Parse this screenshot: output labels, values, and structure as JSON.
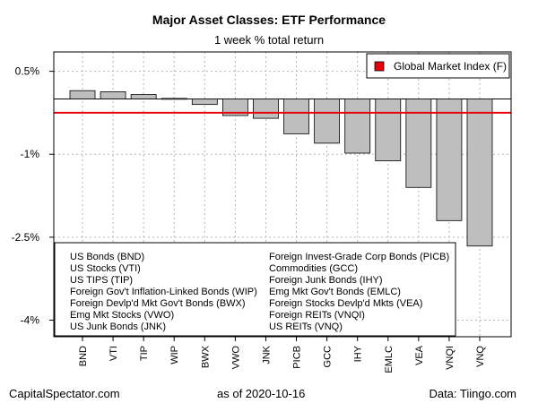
{
  "chart_data": {
    "type": "bar",
    "title": "Major Asset Classes: ETF Performance",
    "subtitle": "1 week % total return",
    "categories": [
      "BND",
      "VTI",
      "TIP",
      "WIP",
      "BWX",
      "VWO",
      "JNK",
      "PICB",
      "GCC",
      "IHY",
      "EMLC",
      "VEA",
      "VNQI",
      "VNQ"
    ],
    "values": [
      0.15,
      0.13,
      0.08,
      0.01,
      -0.1,
      -0.3,
      -0.35,
      -0.63,
      -0.8,
      -0.98,
      -1.12,
      -1.6,
      -2.2,
      -2.66
    ],
    "ylim": [
      -4.3,
      0.85
    ],
    "yticks": [
      0.5,
      -1,
      -2.5,
      -4
    ],
    "ytick_labels": [
      "0.5%",
      "-1%",
      "-2.5%",
      "-4%"
    ],
    "reference_line": {
      "name": "Global Market Index (F)",
      "value": -0.25,
      "color": "#e8000b"
    },
    "bar_color": "#bebebe",
    "grid": true,
    "legend_position": "top-right",
    "annotation_columns": [
      [
        "US Bonds (BND)",
        "US Stocks (VTI)",
        "US TIPS (TIP)",
        "Foreign Gov't Inflation-Linked Bonds (WIP)",
        "Foreign Devlp'd Mkt Gov't Bonds (BWX)",
        "Emg Mkt Stocks (VWO)",
        "US Junk Bonds (JNK)"
      ],
      [
        "Foreign Invest-Grade Corp Bonds (PICB)",
        "Commodities (GCC)",
        "Foreign Junk Bonds (IHY)",
        "Emg Mkt Gov't Bonds (EMLC)",
        "Foreign Stocks Devlp'd Mkts (VEA)",
        "Foreign REITs (VNQI)",
        "US REITs (VNQ)"
      ]
    ]
  },
  "footer": {
    "left": "CapitalSpectator.com",
    "center": "as of   2020-10-16",
    "right": "Data: Tiingo.com"
  }
}
